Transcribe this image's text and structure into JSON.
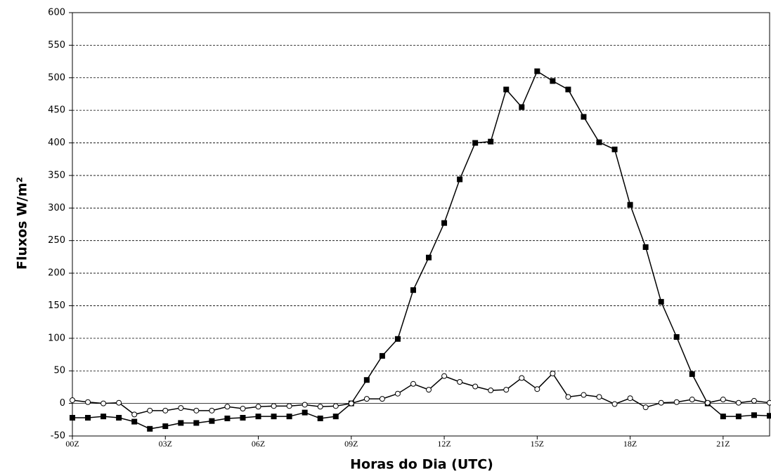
{
  "chart_data": {
    "type": "line",
    "x_label": "Horas do Dia (UTC)",
    "y_label": "Fluxos W/m²",
    "x": [
      0,
      0.5,
      1,
      1.5,
      2,
      2.5,
      3,
      3.5,
      4,
      4.5,
      5,
      5.5,
      6,
      6.5,
      7,
      7.5,
      8,
      8.5,
      9,
      9.5,
      10,
      10.5,
      11,
      11.5,
      12,
      12.5,
      13,
      13.5,
      14,
      14.5,
      15,
      15.5,
      16,
      16.5,
      17,
      17.5,
      18,
      18.5,
      19,
      19.5,
      20,
      20.5,
      21,
      21.5,
      22,
      22.5
    ],
    "series": [
      {
        "color": "#000000",
        "marker": "square",
        "values": [
          -22,
          -22,
          -20,
          -22,
          -28,
          -39,
          -35,
          -30,
          -30,
          -27,
          -23,
          -22,
          -20,
          -20,
          -20,
          -14,
          -23,
          -20,
          0,
          36,
          73,
          99,
          174,
          224,
          277,
          344,
          400,
          402,
          482,
          455,
          510,
          495,
          482,
          440,
          401,
          390,
          305,
          240,
          156,
          102,
          45,
          0,
          -20,
          -20,
          -18,
          -19
        ]
      },
      {
        "color": "#000000",
        "marker": "circle",
        "values": [
          5,
          2,
          0,
          1,
          -17,
          -11,
          -11,
          -7,
          -11,
          -11,
          -5,
          -8,
          -5,
          -4,
          -4,
          -2,
          -5,
          -4,
          0,
          7,
          7,
          15,
          30,
          21,
          42,
          33,
          26,
          20,
          21,
          39,
          22,
          46,
          10,
          13,
          10,
          -1,
          8,
          -6,
          1,
          2,
          6,
          1,
          6,
          1,
          4,
          1
        ]
      }
    ],
    "xlim": [
      0,
      22.5
    ],
    "xticks": [
      {
        "value": 0,
        "label": "00Z"
      },
      {
        "value": 3,
        "label": "03Z"
      },
      {
        "value": 6,
        "label": "06Z"
      },
      {
        "value": 9,
        "label": "09Z"
      },
      {
        "value": 12,
        "label": "12Z"
      },
      {
        "value": 15,
        "label": "15Z"
      },
      {
        "value": 18,
        "label": "18Z"
      },
      {
        "value": 21,
        "label": "21Z"
      }
    ],
    "ylim": [
      -50,
      600
    ],
    "yticks": [
      -50,
      0,
      50,
      100,
      150,
      200,
      250,
      300,
      350,
      400,
      450,
      500,
      550,
      600
    ],
    "grid": true
  }
}
